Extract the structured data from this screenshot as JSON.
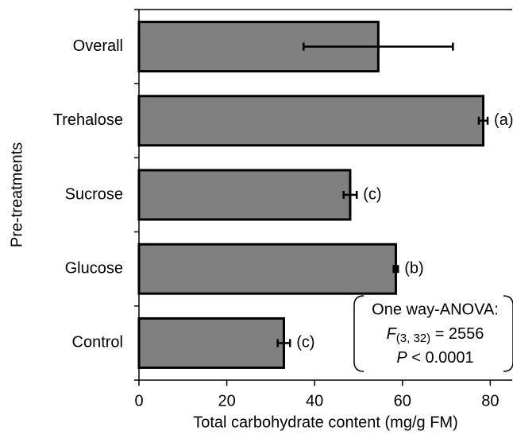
{
  "chart_data": {
    "type": "hbar",
    "xlabel": "Total carbohydrate content (mg/g FM)",
    "ylabel": "Pre-treatments",
    "categories": [
      "Overall",
      "Trehalose",
      "Sucrose",
      "Glucose",
      "Control"
    ],
    "values": [
      54.5,
      78.4,
      48.1,
      58.5,
      33.0
    ],
    "errors": [
      17.0,
      1.0,
      1.5,
      0.5,
      1.4
    ],
    "group_labels": [
      null,
      "(a)",
      "(c)",
      "(b)",
      "(c)"
    ],
    "color": "#808080",
    "xlim": [
      0,
      85
    ],
    "xticks": [
      0,
      20,
      40,
      60,
      80
    ],
    "annotation": {
      "line1": "One way-ANOVA:",
      "f_symbol": "F",
      "f_sub": "(3, 32)",
      "f_rest": " = 2556",
      "p_symbol": "P",
      "p_rest": " < 0.0001"
    }
  }
}
